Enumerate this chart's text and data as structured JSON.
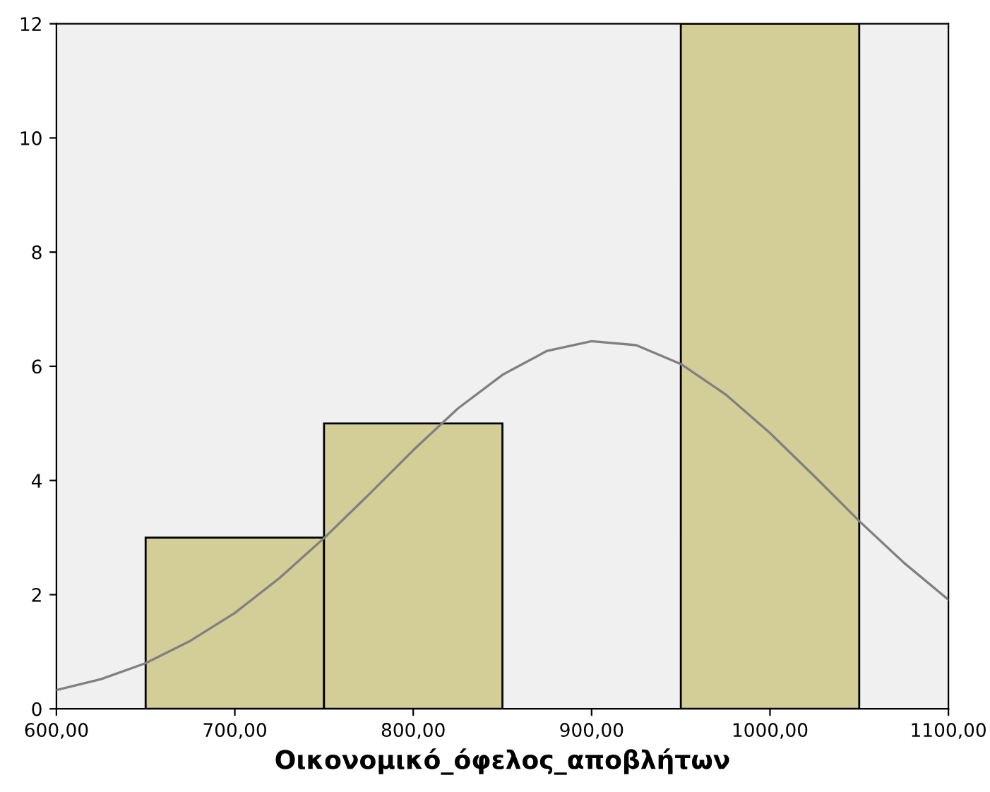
{
  "chart_data": {
    "type": "histogram",
    "xlabel": "Οικονομικό_όφελος_αποβλήτων",
    "series": [
      {
        "bins": [
          650,
          750,
          850,
          950,
          1050
        ],
        "values": [
          3,
          5,
          0,
          12
        ],
        "color": "#d3ce98"
      },
      {
        "type": "line",
        "color": "#808080",
        "x": [
          600,
          625,
          650,
          675,
          700,
          725,
          750,
          775,
          800,
          825,
          850,
          875,
          900,
          925,
          950,
          975,
          1000,
          1025,
          1050,
          1075,
          1100
        ],
        "values": [
          0.33,
          0.52,
          0.8,
          1.19,
          1.68,
          2.29,
          2.99,
          3.75,
          4.53,
          5.26,
          5.85,
          6.27,
          6.44,
          6.37,
          6.04,
          5.51,
          4.83,
          4.07,
          3.29,
          2.56,
          1.91
        ]
      }
    ],
    "xlim": [
      600,
      1100
    ],
    "xticks": [
      {
        "value": 600,
        "label": "600,00"
      },
      {
        "value": 700,
        "label": "700,00"
      },
      {
        "value": 800,
        "label": "800,00"
      },
      {
        "value": 900,
        "label": "900,00"
      },
      {
        "value": 1000,
        "label": "1000,00"
      },
      {
        "value": 1100,
        "label": "1100,00"
      }
    ],
    "ylim": [
      0,
      12
    ],
    "yticks": [
      0,
      2,
      4,
      6,
      8,
      10,
      12
    ],
    "grid": false
  }
}
